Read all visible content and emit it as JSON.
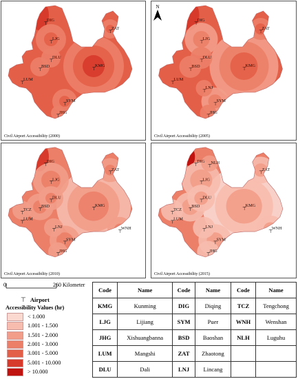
{
  "panels": [
    {
      "title": "Civil Airport Accessibility (2000)",
      "airports": [
        "DIG",
        "LJG",
        "DLU",
        "ZAT",
        "KMG",
        "BSD",
        "LUM",
        "SYM",
        "JHG"
      ]
    },
    {
      "title": "Civil Airport Accessibility (2005)",
      "airports": [
        "DIG",
        "LJG",
        "DLU",
        "ZAT",
        "KMG",
        "BSD",
        "LUM",
        "LNJ",
        "SYM",
        "JHG"
      ]
    },
    {
      "title": "Civil Airport Accessibility (2010)",
      "airports": [
        "DIG",
        "LJG",
        "DLU",
        "ZAT",
        "KMG",
        "BSD",
        "TCZ",
        "LUM",
        "LNJ",
        "SYM",
        "WNH",
        "JHG"
      ]
    },
    {
      "title": "Civil Airport Accessibility (2015)",
      "airports": [
        "DIG",
        "NLH",
        "LJG",
        "DLU",
        "ZAT",
        "KMG",
        "BSD",
        "TCZ",
        "LUM",
        "LNJ",
        "SYM",
        "WNH",
        "JHG"
      ]
    }
  ],
  "north_label": "N",
  "scale": {
    "start": "0",
    "end": "260 Kilometer"
  },
  "legend": {
    "airport_label": "Airport",
    "title": "Accessibility Values (hr)",
    "classes": [
      {
        "label": "< 1.000",
        "color": "#fbd9d1"
      },
      {
        "label": "1.001 - 1.500",
        "color": "#f7bcae"
      },
      {
        "label": "1.501 - 2.000",
        "color": "#f29d8a"
      },
      {
        "label": "2.001 - 3.000",
        "color": "#ec7f68"
      },
      {
        "label": "3.001 - 5.000",
        "color": "#e45f48"
      },
      {
        "label": "5.001 - 10.000",
        "color": "#d73a2a"
      },
      {
        "label": "> 10.000",
        "color": "#c0120f"
      }
    ]
  },
  "table": {
    "headers": [
      "Code",
      "Name",
      "Code",
      "Name",
      "Code",
      "Name"
    ],
    "rows": [
      [
        "KMG",
        "Kunming",
        "DIG",
        "Diqing",
        "TCZ",
        "Tengchong"
      ],
      [
        "LJG",
        "Lijiang",
        "SYM",
        "Puer",
        "WNH",
        "Wenshan"
      ],
      [
        "JHG",
        "Xishuangbanna",
        "BSD",
        "Baoshan",
        "NLH",
        "Luguhu"
      ],
      [
        "LUM",
        "Mangshi",
        "ZAT",
        "Zhaotong",
        "",
        ""
      ],
      [
        "DLU",
        "Dali",
        "LNJ",
        "Lincang",
        "",
        ""
      ]
    ]
  }
}
